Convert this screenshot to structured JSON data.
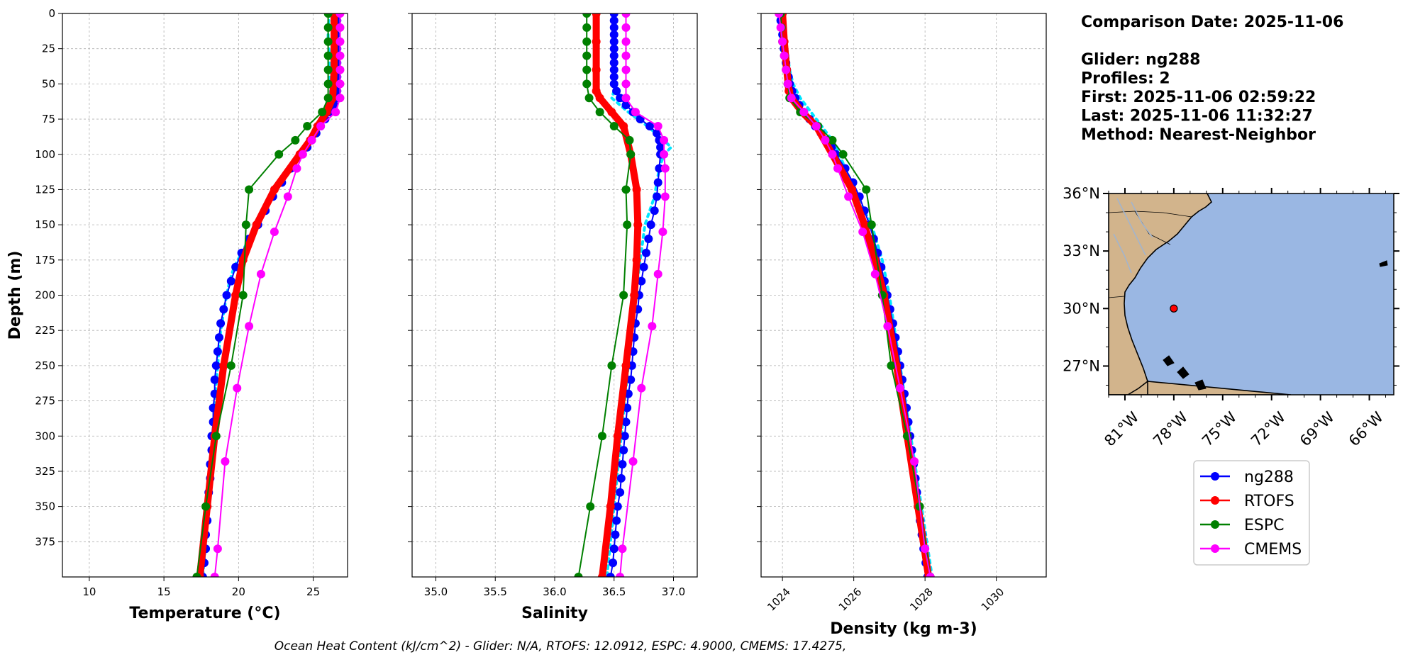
{
  "info": {
    "lines": [
      "Comparison Date: 2025-11-06",
      "",
      "Glider: ng288",
      "Profiles: 2",
      "First: 2025-11-06 02:59:22",
      "Last: 2025-11-06 11:32:27",
      "Method: Nearest-Neighbor"
    ]
  },
  "footer": "Ocean Heat Content (kJ/cm^2) - Glider: N/A,  RTOFS: 12.0912,  ESPC: 4.9000,  CMEMS: 17.4275,",
  "colors": {
    "glider": "#0000ff",
    "glider_raw": "#00e5ff",
    "rtofs": "#ff0000",
    "espc": "#008000",
    "cmems": "#ff00ff",
    "ocean": "#9ab7e3",
    "land": "#d2b48c",
    "grid": "#b0b0b0",
    "river": "#a0b4d0"
  },
  "legend": [
    {
      "label": "ng288",
      "color": "#0000ff"
    },
    {
      "label": "RTOFS",
      "color": "#ff0000"
    },
    {
      "label": "ESPC",
      "color": "#008000"
    },
    {
      "label": "CMEMS",
      "color": "#ff00ff"
    }
  ],
  "map": {
    "lon_ticks": [
      "81°W",
      "78°W",
      "75°W",
      "72°W",
      "69°W",
      "66°W"
    ],
    "lat_ticks": [
      "36°N",
      "33°N",
      "30°N",
      "27°N"
    ],
    "lon_values": [
      -81,
      -78,
      -75,
      -72,
      -69,
      -66
    ],
    "lat_values": [
      36,
      33,
      30,
      27
    ],
    "lon_range": [
      -82.0,
      -64.5
    ],
    "lat_range": [
      25.5,
      36.0
    ],
    "location": {
      "lon": -78.0,
      "lat": 30.0
    }
  },
  "chart_data": [
    {
      "type": "line",
      "xlabel": "Temperature (°C)",
      "ylabel": "Depth (m)",
      "xlim": [
        8.2,
        27.3
      ],
      "ylim": [
        400,
        0
      ],
      "x_ticks": [
        10,
        15,
        20,
        25
      ],
      "x_tick_labels": [
        "10",
        "15",
        "20",
        "25"
      ],
      "y_ticks": [
        0,
        25,
        50,
        75,
        100,
        125,
        150,
        175,
        200,
        225,
        250,
        275,
        300,
        325,
        350,
        375
      ],
      "y_tick_labels": [
        "0",
        "25",
        "50",
        "75",
        "100",
        "125",
        "150",
        "175",
        "200",
        "225",
        "250",
        "275",
        "300",
        "325",
        "350",
        "375"
      ],
      "grid": true,
      "series": [
        {
          "key": "glider_raw",
          "depth": [
            0,
            10,
            20,
            30,
            40,
            50,
            60,
            65,
            70,
            75,
            80,
            85,
            90,
            95,
            100,
            110,
            120,
            130,
            140,
            150,
            160,
            170,
            180,
            190,
            200,
            225,
            250,
            275,
            300,
            325,
            350,
            375,
            400
          ],
          "values": [
            26.1,
            26.0,
            26.0,
            26.1,
            26.1,
            26.1,
            26.2,
            26.1,
            26.0,
            25.8,
            25.5,
            25.2,
            24.9,
            24.6,
            24.2,
            23.5,
            22.9,
            22.3,
            21.8,
            21.3,
            20.7,
            20.2,
            19.7,
            19.4,
            19.2,
            18.8,
            18.6,
            18.4,
            18.3,
            18.1,
            18.0,
            17.8,
            17.6
          ]
        },
        {
          "key": "glider",
          "depth": [
            0,
            5,
            10,
            15,
            20,
            25,
            30,
            35,
            40,
            45,
            50,
            55,
            60,
            65,
            70,
            75,
            80,
            85,
            90,
            95,
            100,
            110,
            120,
            130,
            140,
            150,
            160,
            170,
            180,
            190,
            200,
            210,
            220,
            230,
            240,
            250,
            260,
            270,
            280,
            290,
            300,
            310,
            320,
            330,
            340,
            350,
            360,
            370,
            380,
            390,
            400
          ],
          "values": [
            26.6,
            26.6,
            26.5,
            26.5,
            26.6,
            26.6,
            26.6,
            26.6,
            26.7,
            26.6,
            26.6,
            26.6,
            26.6,
            26.4,
            26.1,
            25.8,
            25.5,
            25.2,
            24.9,
            24.6,
            24.2,
            23.5,
            22.9,
            22.3,
            21.8,
            21.3,
            20.7,
            20.2,
            19.8,
            19.5,
            19.2,
            19.0,
            18.8,
            18.7,
            18.6,
            18.5,
            18.4,
            18.4,
            18.3,
            18.3,
            18.2,
            18.2,
            18.1,
            18.1,
            18.0,
            17.9,
            17.9,
            17.8,
            17.8,
            17.7,
            17.6
          ]
        },
        {
          "key": "rtofs",
          "depth": [
            0,
            20,
            40,
            60,
            70,
            80,
            90,
            100,
            125,
            150,
            175,
            200,
            250,
            300,
            350,
            400
          ],
          "values": [
            26.4,
            26.4,
            26.4,
            26.3,
            25.9,
            25.3,
            24.8,
            24.1,
            22.4,
            21.2,
            20.3,
            19.8,
            19.0,
            18.4,
            17.9,
            17.4
          ]
        },
        {
          "key": "espc",
          "depth": [
            0,
            10,
            20,
            30,
            40,
            50,
            60,
            70,
            80,
            90,
            100,
            125,
            150,
            200,
            250,
            300,
            350,
            400
          ],
          "values": [
            26.0,
            26.0,
            26.0,
            26.0,
            26.0,
            26.0,
            26.0,
            25.6,
            24.6,
            23.8,
            22.7,
            20.7,
            20.5,
            20.3,
            19.5,
            18.5,
            17.8,
            17.2
          ]
        },
        {
          "key": "cmems",
          "depth": [
            0,
            10,
            20,
            30,
            40,
            50,
            60,
            70,
            80,
            90,
            100,
            110,
            130,
            155,
            185,
            222,
            266,
            318,
            380,
            400
          ],
          "values": [
            26.8,
            26.8,
            26.8,
            26.8,
            26.8,
            26.8,
            26.8,
            26.5,
            25.5,
            24.9,
            24.3,
            23.9,
            23.3,
            22.4,
            21.5,
            20.7,
            19.9,
            19.1,
            18.6,
            18.4
          ]
        }
      ]
    },
    {
      "type": "line",
      "xlabel": "Salinity",
      "xlim": [
        34.8,
        37.2
      ],
      "ylim": [
        400,
        0
      ],
      "x_ticks": [
        35.0,
        35.5,
        36.0,
        36.5,
        37.0
      ],
      "x_tick_labels": [
        "35.0",
        "35.5",
        "36.0",
        "36.5",
        "37.0"
      ],
      "y_ticks": [
        0,
        25,
        50,
        75,
        100,
        125,
        150,
        175,
        200,
        225,
        250,
        275,
        300,
        325,
        350,
        375
      ],
      "grid": true,
      "series": [
        {
          "key": "glider_raw",
          "depth": [
            0,
            10,
            20,
            30,
            40,
            50,
            55,
            60,
            65,
            70,
            75,
            80,
            85,
            90,
            95,
            100,
            110,
            120,
            130,
            140,
            150,
            175,
            200,
            250,
            300,
            350,
            400
          ],
          "values": [
            36.5,
            36.5,
            36.5,
            36.5,
            36.5,
            36.5,
            36.5,
            36.48,
            36.55,
            36.62,
            36.7,
            36.78,
            36.85,
            36.92,
            36.98,
            36.92,
            36.88,
            36.86,
            36.84,
            36.8,
            36.76,
            36.72,
            36.68,
            36.62,
            36.56,
            36.5,
            36.44
          ]
        },
        {
          "key": "glider",
          "depth": [
            0,
            5,
            10,
            15,
            20,
            25,
            30,
            35,
            40,
            45,
            50,
            55,
            60,
            65,
            70,
            75,
            80,
            85,
            90,
            95,
            100,
            110,
            120,
            130,
            140,
            150,
            160,
            170,
            180,
            190,
            200,
            210,
            220,
            230,
            240,
            250,
            260,
            270,
            280,
            290,
            300,
            310,
            320,
            330,
            340,
            350,
            360,
            370,
            380,
            390,
            400
          ],
          "values": [
            36.5,
            36.5,
            36.5,
            36.5,
            36.5,
            36.5,
            36.5,
            36.5,
            36.5,
            36.5,
            36.5,
            36.52,
            36.55,
            36.6,
            36.66,
            36.72,
            36.8,
            36.86,
            36.88,
            36.89,
            36.89,
            36.88,
            36.87,
            36.86,
            36.84,
            36.81,
            36.79,
            36.77,
            36.75,
            36.73,
            36.71,
            36.7,
            36.68,
            36.67,
            36.66,
            36.65,
            36.64,
            36.62,
            36.61,
            36.6,
            36.59,
            36.58,
            36.57,
            36.56,
            36.55,
            36.53,
            36.52,
            36.51,
            36.5,
            36.49,
            36.47
          ]
        },
        {
          "key": "rtofs",
          "depth": [
            0,
            20,
            40,
            55,
            60,
            70,
            80,
            100,
            125,
            150,
            175,
            200,
            250,
            300,
            350,
            400
          ],
          "values": [
            36.35,
            36.35,
            36.35,
            36.35,
            36.38,
            36.48,
            36.58,
            36.64,
            36.69,
            36.7,
            36.69,
            36.67,
            36.6,
            36.53,
            36.47,
            36.4
          ]
        },
        {
          "key": "espc",
          "depth": [
            0,
            10,
            20,
            30,
            40,
            50,
            60,
            70,
            80,
            90,
            100,
            125,
            150,
            200,
            250,
            300,
            350,
            400
          ],
          "values": [
            36.27,
            36.27,
            36.27,
            36.27,
            36.27,
            36.27,
            36.29,
            36.38,
            36.5,
            36.63,
            36.64,
            36.6,
            36.61,
            36.58,
            36.48,
            36.4,
            36.3,
            36.2
          ]
        },
        {
          "key": "cmems",
          "depth": [
            0,
            10,
            20,
            30,
            40,
            50,
            60,
            70,
            80,
            90,
            100,
            110,
            130,
            155,
            185,
            222,
            266,
            318,
            380,
            400
          ],
          "values": [
            36.6,
            36.6,
            36.6,
            36.6,
            36.6,
            36.6,
            36.6,
            36.68,
            36.87,
            36.92,
            36.92,
            36.93,
            36.93,
            36.91,
            36.87,
            36.82,
            36.73,
            36.66,
            36.57,
            36.55
          ]
        }
      ]
    },
    {
      "type": "line",
      "xlabel": "Density (kg m-3)",
      "xlim": [
        1023.4,
        1031.4
      ],
      "ylim": [
        400,
        0
      ],
      "x_ticks": [
        1024,
        1026,
        1028,
        1030
      ],
      "x_tick_labels": [
        "1024",
        "1026",
        "1028",
        "1030"
      ],
      "y_ticks": [
        0,
        25,
        50,
        75,
        100,
        125,
        150,
        175,
        200,
        225,
        250,
        275,
        300,
        325,
        350,
        375
      ],
      "grid": true,
      "series": [
        {
          "key": "glider_raw",
          "depth": [
            0,
            10,
            20,
            30,
            40,
            50,
            60,
            70,
            80,
            90,
            100,
            125,
            150,
            175,
            200,
            250,
            300,
            350,
            400
          ],
          "values": [
            1024.0,
            1024.05,
            1024.1,
            1024.15,
            1024.2,
            1024.3,
            1024.5,
            1024.8,
            1025.1,
            1025.4,
            1025.6,
            1026.0,
            1026.5,
            1026.8,
            1027.0,
            1027.3,
            1027.6,
            1027.9,
            1028.2
          ]
        },
        {
          "key": "glider",
          "depth": [
            0,
            5,
            10,
            15,
            20,
            25,
            30,
            35,
            40,
            45,
            50,
            55,
            60,
            65,
            70,
            75,
            80,
            85,
            90,
            95,
            100,
            110,
            120,
            130,
            140,
            150,
            160,
            170,
            180,
            190,
            200,
            210,
            220,
            230,
            240,
            250,
            260,
            270,
            280,
            290,
            300,
            310,
            320,
            330,
            340,
            350,
            360,
            370,
            380,
            390,
            400
          ],
          "values": [
            1023.95,
            1023.95,
            1023.97,
            1024.0,
            1024.02,
            1024.04,
            1024.07,
            1024.1,
            1024.12,
            1024.17,
            1024.2,
            1024.27,
            1024.36,
            1024.47,
            1024.6,
            1024.76,
            1024.92,
            1025.08,
            1025.24,
            1025.38,
            1025.5,
            1025.76,
            1025.98,
            1026.16,
            1026.3,
            1026.44,
            1026.56,
            1026.67,
            1026.77,
            1026.86,
            1026.94,
            1027.02,
            1027.1,
            1027.17,
            1027.24,
            1027.3,
            1027.36,
            1027.42,
            1027.48,
            1027.53,
            1027.58,
            1027.63,
            1027.68,
            1027.73,
            1027.77,
            1027.82,
            1027.86,
            1027.91,
            1027.96,
            1028.02,
            1028.07
          ]
        },
        {
          "key": "rtofs",
          "depth": [
            0,
            20,
            40,
            55,
            60,
            70,
            80,
            100,
            125,
            150,
            175,
            200,
            250,
            300,
            350,
            400
          ],
          "values": [
            1024.0,
            1024.05,
            1024.12,
            1024.18,
            1024.25,
            1024.55,
            1024.95,
            1025.4,
            1025.95,
            1026.3,
            1026.6,
            1026.85,
            1027.2,
            1027.5,
            1027.8,
            1028.1
          ]
        },
        {
          "key": "espc",
          "depth": [
            0,
            10,
            20,
            30,
            40,
            50,
            60,
            70,
            80,
            90,
            100,
            125,
            150,
            200,
            250,
            300,
            350,
            400
          ],
          "values": [
            1023.95,
            1023.97,
            1024.0,
            1024.05,
            1024.1,
            1024.15,
            1024.2,
            1024.5,
            1025.0,
            1025.4,
            1025.7,
            1026.35,
            1026.5,
            1026.8,
            1027.05,
            1027.5,
            1027.85,
            1028.15
          ]
        },
        {
          "key": "cmems",
          "depth": [
            0,
            10,
            20,
            30,
            40,
            50,
            60,
            70,
            80,
            90,
            100,
            110,
            130,
            155,
            185,
            222,
            266,
            318,
            380,
            400
          ],
          "values": [
            1023.9,
            1023.95,
            1024.0,
            1024.05,
            1024.1,
            1024.15,
            1024.25,
            1024.6,
            1024.95,
            1025.2,
            1025.4,
            1025.55,
            1025.85,
            1026.25,
            1026.6,
            1026.95,
            1027.3,
            1027.7,
            1028.0,
            1028.15
          ]
        }
      ]
    }
  ]
}
